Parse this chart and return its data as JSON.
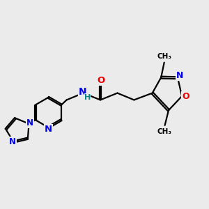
{
  "bg_color": "#ebebeb",
  "bond_color": "#000000",
  "bond_width": 1.6,
  "dbo": 0.04,
  "atom_colors": {
    "N": "#0000ee",
    "O": "#ee0000",
    "H": "#008888",
    "C": "#000000"
  },
  "fs": 9.5,
  "fsm": 8.0
}
